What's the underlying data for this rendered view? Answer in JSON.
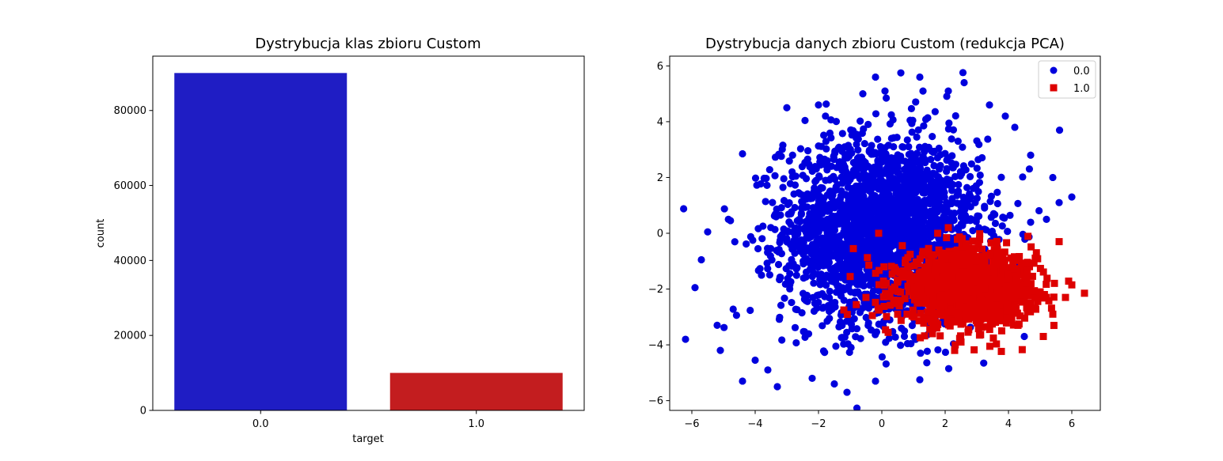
{
  "colors": {
    "class0": "#1f1dc4",
    "class1": "#c31d1f",
    "scatter0": "#0000dd",
    "scatter1": "#dd0000"
  },
  "chart_data": [
    {
      "type": "bar",
      "title": "Dystrybucja klas zbioru Custom",
      "xlabel": "target",
      "ylabel": "count",
      "categories": [
        "0.0",
        "1.0"
      ],
      "values": [
        90000,
        10000
      ],
      "ylim": [
        0,
        94500
      ],
      "yticks": [
        0,
        20000,
        40000,
        60000,
        80000
      ],
      "ytick_labels": [
        "0",
        "20000",
        "40000",
        "60000",
        "80000"
      ],
      "grid": false
    },
    {
      "type": "scatter",
      "title": "Dystrybucja danych zbioru Custom (redukcja PCA)",
      "xlabel": "",
      "ylabel": "",
      "xlim": [
        -6.7,
        6.9
      ],
      "ylim": [
        -6.35,
        6.35
      ],
      "xticks": [
        -6,
        -4,
        -2,
        0,
        2,
        4,
        6
      ],
      "xtick_labels": [
        "−6",
        "−4",
        "−2",
        "0",
        "2",
        "4",
        "6"
      ],
      "yticks": [
        -6,
        -4,
        -2,
        0,
        2,
        4,
        6
      ],
      "ytick_labels": [
        "−6",
        "−4",
        "−2",
        "0",
        "2",
        "4",
        "6"
      ],
      "legend_position": "top-right",
      "grid": false,
      "series": [
        {
          "name": "0.0",
          "marker": "circle",
          "cluster": {
            "center": [
              0.0,
              0.1
            ],
            "std": [
              1.55,
              1.65
            ],
            "count": 90000
          },
          "points": [
            [
              -6.2,
              -3.8
            ],
            [
              -5.9,
              -1.95
            ],
            [
              -5.7,
              -0.95
            ],
            [
              -5.5,
              0.05
            ],
            [
              -5.2,
              -3.3
            ],
            [
              -5.1,
              -4.2
            ],
            [
              -4.4,
              -5.3
            ],
            [
              -4.4,
              2.85
            ],
            [
              -4.0,
              -4.55
            ],
            [
              -3.3,
              -5.5
            ],
            [
              -3.0,
              4.5
            ],
            [
              -2.2,
              -5.2
            ],
            [
              -2.0,
              4.6
            ],
            [
              -1.5,
              -5.4
            ],
            [
              -1.1,
              -5.7
            ],
            [
              -0.6,
              5.0
            ],
            [
              -0.2,
              5.6
            ],
            [
              -0.2,
              -5.3
            ],
            [
              0.1,
              5.1
            ],
            [
              0.6,
              5.75
            ],
            [
              1.2,
              5.6
            ],
            [
              1.2,
              -5.25
            ],
            [
              1.3,
              5.1
            ],
            [
              2.1,
              5.1
            ],
            [
              2.6,
              5.4
            ],
            [
              3.4,
              4.6
            ],
            [
              3.9,
              4.2
            ],
            [
              4.2,
              3.8
            ],
            [
              4.7,
              2.8
            ],
            [
              5.4,
              2.0
            ],
            [
              6.0,
              1.3
            ],
            [
              5.6,
              1.1
            ],
            [
              5.2,
              0.5
            ],
            [
              4.5,
              -3.7
            ],
            [
              -3.6,
              -4.9
            ]
          ]
        },
        {
          "name": "1.0",
          "marker": "square",
          "cluster": {
            "center": [
              2.7,
              -1.95
            ],
            "std": [
              1.05,
              0.65
            ],
            "count": 10000
          },
          "points": [
            [
              -1.2,
              -2.75
            ],
            [
              -1.0,
              -1.55
            ],
            [
              -0.9,
              -0.55
            ],
            [
              -0.5,
              -2.3
            ],
            [
              -0.3,
              -2.95
            ],
            [
              -0.1,
              0.0
            ],
            [
              0.5,
              -2.9
            ],
            [
              1.6,
              -3.6
            ],
            [
              2.1,
              0.2
            ],
            [
              2.3,
              -4.2
            ],
            [
              2.5,
              -3.9
            ],
            [
              4.3,
              -3.3
            ],
            [
              4.6,
              -2.8
            ],
            [
              5.0,
              -2.1
            ],
            [
              5.2,
              -2.3
            ],
            [
              5.1,
              -3.7
            ],
            [
              5.4,
              -2.9
            ],
            [
              5.6,
              -0.3
            ],
            [
              5.8,
              -2.3
            ],
            [
              6.0,
              -1.85
            ],
            [
              6.4,
              -2.15
            ]
          ]
        }
      ]
    }
  ]
}
